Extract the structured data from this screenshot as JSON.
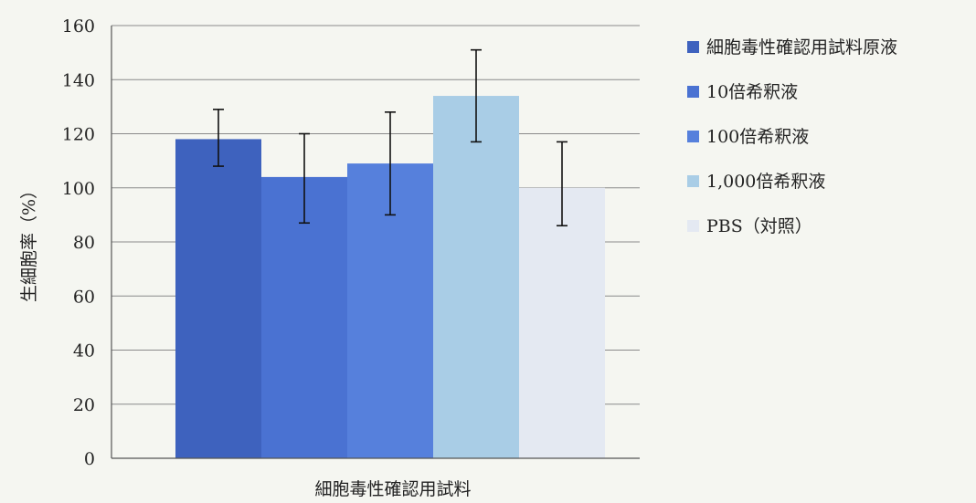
{
  "chart_data": {
    "type": "bar",
    "title": "",
    "xlabel": "細胞毒性確認用試料",
    "ylabel": "生細胞率（%）",
    "ylim": [
      0,
      160
    ],
    "yticks": [
      0,
      20,
      40,
      60,
      80,
      100,
      120,
      140,
      160
    ],
    "grid": true,
    "legend_position": "right",
    "categories": [
      "細胞毒性確認用試料"
    ],
    "series": [
      {
        "name": "細胞毒性確認用試料原液",
        "values": [
          118
        ],
        "error_low": [
          108
        ],
        "error_high": [
          129
        ],
        "color": "#3e62be"
      },
      {
        "name": "10倍希釈液",
        "values": [
          104
        ],
        "error_low": [
          87
        ],
        "error_high": [
          120
        ],
        "color": "#4a72d2"
      },
      {
        "name": "100倍希釈液",
        "values": [
          109
        ],
        "error_low": [
          90
        ],
        "error_high": [
          128
        ],
        "color": "#5680dc"
      },
      {
        "name": "1,000倍希釈液",
        "values": [
          134
        ],
        "error_low": [
          117
        ],
        "error_high": [
          151
        ],
        "color": "#a9cde6"
      },
      {
        "name": "PBS（対照）",
        "values": [
          100
        ],
        "error_low": [
          86
        ],
        "error_high": [
          117
        ],
        "color": "#e4e9f2"
      }
    ]
  }
}
